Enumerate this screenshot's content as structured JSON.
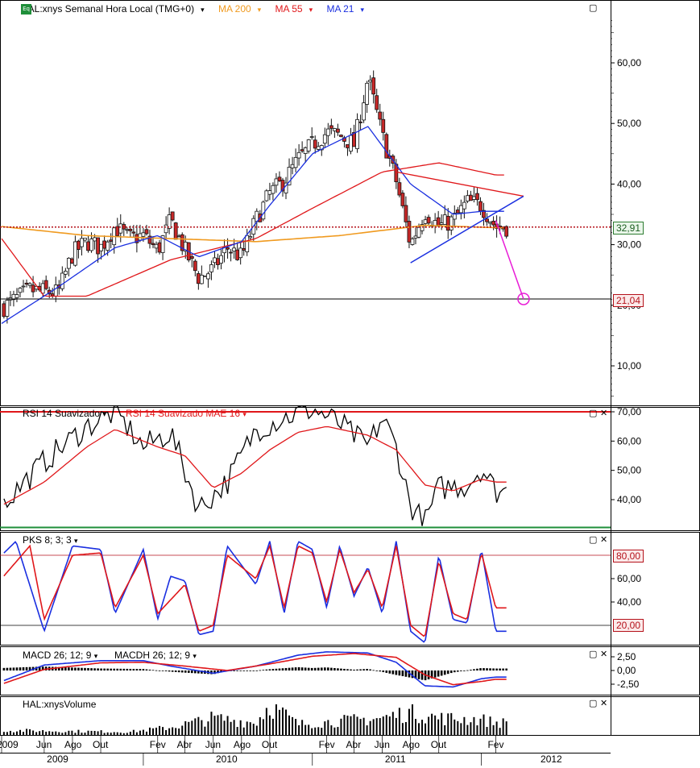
{
  "colors": {
    "candle_up": "#ffffff",
    "candle_down": "#c62828",
    "candle_edge": "#111111",
    "ma21": "#1a2fe0",
    "ma55": "#e0171a",
    "ma200": "#f09a1f",
    "trend_upper": "#e0171a",
    "trend_lower": "#1a2fe0",
    "projection": "#e81bd6",
    "rsi": "#000000",
    "rsi_ma": "#e0171a",
    "pks_k": "#1a2fe0",
    "pks_d": "#e0171a",
    "macd": "#1a2fe0",
    "macd_signal": "#e0171a",
    "macdh": "#000000",
    "volume": "#000000",
    "price_level_line": "#b5121b"
  },
  "header": {
    "badge": "Eq",
    "symbol": "HAL:xnys Semanal Hora Local (TMG+0)",
    "ma200_label": "MA 200",
    "ma55_label": "MA 55",
    "ma21_label": "MA 21"
  },
  "panels": {
    "rsi": {
      "label": "RSI 14 Suavizado",
      "ma_label": "RSI 14 Suavizado MAE 16"
    },
    "pks": {
      "label": "PKS 8; 3; 3"
    },
    "macd": {
      "label": "MACD 26; 12; 9",
      "hist_label": "MACDH 26; 12; 9"
    },
    "volume": {
      "label": "HAL:xnysVolume"
    }
  },
  "price_tags": {
    "last": "32,91",
    "target": "21,04"
  },
  "level_tags": {
    "pks_upper": "80,00",
    "pks_lower": "20,00"
  },
  "axis_labels": {
    "price": [
      "60,00",
      "50,00",
      "40,00",
      "30,00",
      "20,00",
      "10,00"
    ],
    "rsi": [
      "70,00",
      "60,00",
      "50,00",
      "40,00"
    ],
    "pks": [
      "60,00",
      "40,00"
    ],
    "macd": [
      "2,50",
      "0,00",
      "-2,50"
    ]
  },
  "time_axis": {
    "months": [
      "2009",
      "Jun",
      "Ago",
      "Out",
      "Fev",
      "Abr",
      "Jun",
      "Ago",
      "Out",
      "Fev",
      "Abr",
      "Jun",
      "Ago",
      "Out",
      "Fev"
    ],
    "years": [
      "2009",
      "2010",
      "2011",
      "2012"
    ]
  },
  "chart_data": {
    "type": "candlestick",
    "title": "HAL:xnys Semanal Hora Local (TMG+0)",
    "x_range": [
      "2009-03",
      "2012-04"
    ],
    "price_ylim": [
      0,
      68
    ],
    "last_price": 32.91,
    "target_price": 21.04,
    "weekly_close_anchors": [
      [
        "2009-03",
        19.5
      ],
      [
        "2009-05",
        22.5
      ],
      [
        "2009-07",
        22.0
      ],
      [
        "2009-08",
        28.5
      ],
      [
        "2009-09",
        30.5
      ],
      [
        "2009-10",
        29.5
      ],
      [
        "2009-11",
        33.0
      ],
      [
        "2009-12",
        31.0
      ],
      [
        "2010-01",
        31.5
      ],
      [
        "2010-02",
        29.0
      ],
      [
        "2010-03",
        34.0
      ],
      [
        "2010-04",
        29.0
      ],
      [
        "2010-05",
        24.5
      ],
      [
        "2010-06",
        26.0
      ],
      [
        "2010-07",
        29.5
      ],
      [
        "2010-08",
        28.0
      ],
      [
        "2010-09",
        34.0
      ],
      [
        "2010-10",
        38.5
      ],
      [
        "2010-11",
        40.5
      ],
      [
        "2010-12",
        44.0
      ],
      [
        "2011-01",
        46.5
      ],
      [
        "2011-02",
        48.5
      ],
      [
        "2011-03",
        48.0
      ],
      [
        "2011-04",
        46.5
      ],
      [
        "2011-05",
        57.5
      ],
      [
        "2011-06",
        48.0
      ],
      [
        "2011-07",
        40.5
      ],
      [
        "2011-08",
        30.0
      ],
      [
        "2011-09",
        35.5
      ],
      [
        "2011-10",
        33.0
      ],
      [
        "2011-11",
        34.0
      ],
      [
        "2011-12",
        37.0
      ],
      [
        "2012-01",
        36.5
      ],
      [
        "2012-02",
        32.9
      ]
    ],
    "moving_averages": {
      "MA 200": [
        [
          "2009-03",
          33.0
        ],
        [
          "2009-09",
          31.5
        ],
        [
          "2010-03",
          31.0
        ],
        [
          "2010-09",
          30.5
        ],
        [
          "2011-03",
          31.5
        ],
        [
          "2011-09",
          33.2
        ],
        [
          "2012-02",
          32.8
        ]
      ],
      "MA 55": [
        [
          "2009-03",
          31.0
        ],
        [
          "2009-06",
          21.5
        ],
        [
          "2009-09",
          21.5
        ],
        [
          "2010-03",
          27.5
        ],
        [
          "2010-09",
          31.0
        ],
        [
          "2011-01",
          36.0
        ],
        [
          "2011-06",
          42.0
        ],
        [
          "2011-10",
          43.5
        ],
        [
          "2012-02",
          41.5
        ]
      ],
      "MA 21": [
        [
          "2009-03",
          17.0
        ],
        [
          "2009-07",
          23.0
        ],
        [
          "2009-11",
          29.5
        ],
        [
          "2010-02",
          31.5
        ],
        [
          "2010-05",
          28.0
        ],
        [
          "2010-08",
          30.5
        ],
        [
          "2010-10",
          36.5
        ],
        [
          "2011-01",
          45.0
        ],
        [
          "2011-05",
          49.5
        ],
        [
          "2011-08",
          40.0
        ],
        [
          "2011-11",
          35.0
        ],
        [
          "2012-01",
          35.5
        ],
        [
          "2012-02",
          35.5
        ]
      ]
    },
    "trendlines": {
      "upper": [
        [
          "2011-07",
          42.0
        ],
        [
          "2012-04",
          38.0
        ]
      ],
      "lower": [
        [
          "2011-08",
          27.0
        ],
        [
          "2012-04",
          38.0
        ]
      ],
      "projection": [
        [
          "2012-02",
          34.0
        ],
        [
          "2012-04",
          21.04
        ]
      ]
    },
    "rsi": {
      "ylim": [
        30,
        72
      ],
      "anchors": [
        [
          "2009-03",
          38
        ],
        [
          "2009-06",
          53
        ],
        [
          "2009-09",
          65
        ],
        [
          "2009-11",
          70
        ],
        [
          "2010-01",
          58
        ],
        [
          "2010-03",
          63
        ],
        [
          "2010-05",
          37
        ],
        [
          "2010-07",
          46
        ],
        [
          "2010-09",
          64
        ],
        [
          "2010-11",
          68
        ],
        [
          "2011-01",
          71
        ],
        [
          "2011-03",
          66
        ],
        [
          "2011-05",
          58
        ],
        [
          "2011-06",
          68
        ],
        [
          "2011-07",
          58
        ],
        [
          "2011-08",
          38
        ],
        [
          "2011-09",
          32
        ],
        [
          "2011-10",
          44
        ],
        [
          "2011-12",
          45
        ],
        [
          "2012-01",
          51
        ],
        [
          "2012-02",
          43
        ]
      ],
      "ma_anchors": [
        [
          "2009-03",
          38
        ],
        [
          "2009-06",
          46
        ],
        [
          "2009-09",
          58
        ],
        [
          "2009-11",
          64
        ],
        [
          "2010-02",
          58
        ],
        [
          "2010-04",
          55
        ],
        [
          "2010-06",
          44
        ],
        [
          "2010-08",
          49
        ],
        [
          "2010-10",
          57
        ],
        [
          "2010-12",
          63
        ],
        [
          "2011-02",
          65
        ],
        [
          "2011-05",
          62
        ],
        [
          "2011-07",
          57
        ],
        [
          "2011-09",
          45
        ],
        [
          "2011-11",
          43
        ],
        [
          "2012-01",
          47
        ],
        [
          "2012-02",
          46
        ]
      ]
    },
    "pks": {
      "ylim": [
        0,
        100
      ],
      "upper": 80,
      "lower": 20,
      "k_anchors": [
        [
          "2009-03",
          80
        ],
        [
          "2009-04",
          92
        ],
        [
          "2009-06",
          15
        ],
        [
          "2009-08",
          88
        ],
        [
          "2009-10",
          85
        ],
        [
          "2009-11",
          30
        ],
        [
          "2010-01",
          85
        ],
        [
          "2010-02",
          25
        ],
        [
          "2010-03",
          62
        ],
        [
          "2010-04",
          58
        ],
        [
          "2010-05",
          12
        ],
        [
          "2010-06",
          15
        ],
        [
          "2010-07",
          88
        ],
        [
          "2010-09",
          55
        ],
        [
          "2010-10",
          92
        ],
        [
          "2010-11",
          30
        ],
        [
          "2010-12",
          92
        ],
        [
          "2011-01",
          85
        ],
        [
          "2011-02",
          35
        ],
        [
          "2011-03",
          88
        ],
        [
          "2011-04",
          45
        ],
        [
          "2011-05",
          70
        ],
        [
          "2011-06",
          30
        ],
        [
          "2011-07",
          92
        ],
        [
          "2011-08",
          15
        ],
        [
          "2011-09",
          5
        ],
        [
          "2011-10",
          80
        ],
        [
          "2011-11",
          25
        ],
        [
          "2011-12",
          22
        ],
        [
          "2012-01",
          85
        ],
        [
          "2012-02",
          15
        ]
      ],
      "d_anchors": [
        [
          "2009-03",
          60
        ],
        [
          "2009-05",
          88
        ],
        [
          "2009-06",
          25
        ],
        [
          "2009-08",
          80
        ],
        [
          "2009-10",
          82
        ],
        [
          "2009-11",
          35
        ],
        [
          "2010-01",
          80
        ],
        [
          "2010-02",
          30
        ],
        [
          "2010-04",
          55
        ],
        [
          "2010-05",
          15
        ],
        [
          "2010-06",
          20
        ],
        [
          "2010-07",
          80
        ],
        [
          "2010-09",
          60
        ],
        [
          "2010-10",
          88
        ],
        [
          "2010-11",
          35
        ],
        [
          "2010-12",
          88
        ],
        [
          "2011-01",
          82
        ],
        [
          "2011-02",
          40
        ],
        [
          "2011-03",
          85
        ],
        [
          "2011-04",
          48
        ],
        [
          "2011-05",
          68
        ],
        [
          "2011-06",
          35
        ],
        [
          "2011-07",
          88
        ],
        [
          "2011-08",
          20
        ],
        [
          "2011-09",
          10
        ],
        [
          "2011-10",
          75
        ],
        [
          "2011-11",
          30
        ],
        [
          "2011-12",
          25
        ],
        [
          "2012-01",
          82
        ],
        [
          "2012-02",
          35
        ]
      ]
    },
    "macd": {
      "ylim": [
        -3.8,
        3.8
      ],
      "macd_anchors": [
        [
          "2009-03",
          -2.0
        ],
        [
          "2009-06",
          1.0
        ],
        [
          "2009-10",
          1.8
        ],
        [
          "2010-01",
          1.8
        ],
        [
          "2010-03",
          0.8
        ],
        [
          "2010-06",
          -0.5
        ],
        [
          "2010-09",
          0.8
        ],
        [
          "2010-12",
          2.8
        ],
        [
          "2011-02",
          3.4
        ],
        [
          "2011-05",
          3.2
        ],
        [
          "2011-07",
          1.5
        ],
        [
          "2011-09",
          -2.8
        ],
        [
          "2011-11",
          -3.0
        ],
        [
          "2012-01",
          -1.5
        ],
        [
          "2012-02",
          -1.2
        ]
      ],
      "signal_anchors": [
        [
          "2009-03",
          -2.5
        ],
        [
          "2009-06",
          0.2
        ],
        [
          "2009-10",
          1.4
        ],
        [
          "2010-01",
          1.5
        ],
        [
          "2010-04",
          0.8
        ],
        [
          "2010-07",
          0.0
        ],
        [
          "2010-10",
          1.2
        ],
        [
          "2011-01",
          2.6
        ],
        [
          "2011-04",
          3.1
        ],
        [
          "2011-07",
          2.4
        ],
        [
          "2011-09",
          -0.8
        ],
        [
          "2011-11",
          -2.6
        ],
        [
          "2012-01",
          -2.0
        ],
        [
          "2012-02",
          -1.6
        ]
      ]
    },
    "volume": {
      "profile": [
        [
          "2009-03",
          0.15
        ],
        [
          "2009-12",
          0.1
        ],
        [
          "2010-03",
          0.25
        ],
        [
          "2010-06",
          0.55
        ],
        [
          "2010-09",
          0.4
        ],
        [
          "2010-10",
          1.0
        ],
        [
          "2010-12",
          0.35
        ],
        [
          "2011-03",
          0.45
        ],
        [
          "2011-06",
          0.55
        ],
        [
          "2011-08",
          0.75
        ],
        [
          "2011-10",
          0.55
        ],
        [
          "2012-01",
          0.5
        ],
        [
          "2012-02",
          0.4
        ]
      ]
    }
  }
}
